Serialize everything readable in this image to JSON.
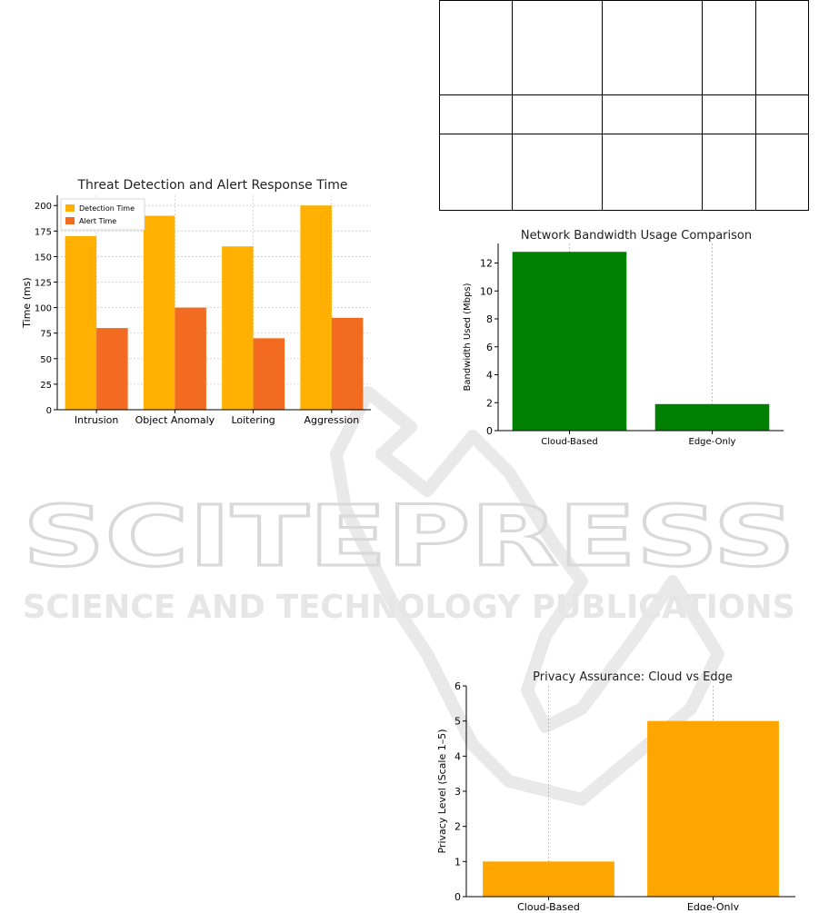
{
  "watermark": {
    "line1": "SCITEPRESS",
    "line2": "SCIENCE AND TECHNOLOGY PUBLICATIONS"
  },
  "table": {
    "rows": 3,
    "cols": 5
  },
  "chart_data": [
    {
      "id": "threat",
      "type": "bar",
      "title": "Threat Detection and Alert Response Time",
      "xlabel": "",
      "ylabel": "Time (ms)",
      "categories": [
        "Intrusion",
        "Object Anomaly",
        "Loitering",
        "Aggression"
      ],
      "series": [
        {
          "name": "Detection Time",
          "values": [
            170,
            190,
            160,
            200
          ],
          "color": "#FFB000"
        },
        {
          "name": "Alert Time",
          "values": [
            80,
            100,
            70,
            90
          ],
          "color": "#F26B21"
        }
      ],
      "ylim": [
        0,
        210
      ],
      "yticks": [
        0,
        25,
        50,
        75,
        100,
        125,
        150,
        175,
        200
      ],
      "grid": true,
      "legend": "top-left"
    },
    {
      "id": "bandwidth",
      "type": "bar",
      "title": "Network Bandwidth Usage Comparison",
      "xlabel": "",
      "ylabel": "Bandwidth Used (Mbps)",
      "categories": [
        "Cloud-Based",
        "Edge-Only"
      ],
      "values": [
        12.8,
        1.9
      ],
      "color": "#008000",
      "ylim": [
        0,
        13.4
      ],
      "yticks": [
        0,
        2,
        4,
        6,
        8,
        10,
        12
      ],
      "grid": true
    },
    {
      "id": "privacy",
      "type": "bar",
      "title": "Privacy Assurance: Cloud vs Edge",
      "xlabel": "",
      "ylabel": "Privacy Level (Scale 1–5)",
      "categories": [
        "Cloud-Based",
        "Edge-Only"
      ],
      "values": [
        1,
        5
      ],
      "color": "#FFA500",
      "ylim": [
        0,
        6
      ],
      "yticks": [
        0,
        1,
        2,
        3,
        4,
        5,
        6
      ],
      "grid": true
    }
  ]
}
